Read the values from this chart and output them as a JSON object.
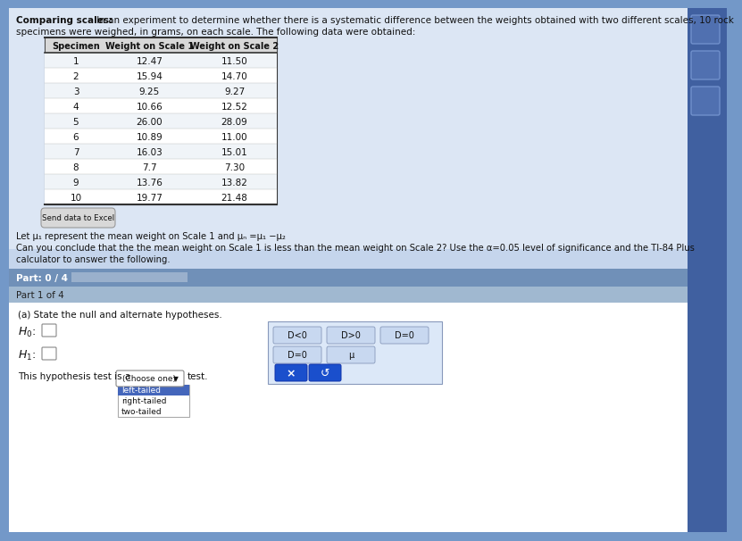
{
  "title_bold": "Comparing scales:",
  "title_rest": " In an experiment to determine whether there is a systematic difference between the weights obtained with two different scales, 10 rock",
  "title_line2": "specimens were weighed, in grams, on each scale. The following data were obtained:",
  "table_headers": [
    "Specimen",
    "Weight on Scale 1",
    "Weight on Scale 2"
  ],
  "table_data": [
    [
      1,
      "12.47",
      "11.50"
    ],
    [
      2,
      "15.94",
      "14.70"
    ],
    [
      3,
      "9.25",
      "9.27"
    ],
    [
      4,
      "10.66",
      "12.52"
    ],
    [
      5,
      "26.00",
      "28.09"
    ],
    [
      6,
      "10.89",
      "11.00"
    ],
    [
      7,
      "16.03",
      "15.01"
    ],
    [
      8,
      "7.7",
      "7.30"
    ],
    [
      9,
      "13.76",
      "13.82"
    ],
    [
      10,
      "19.77",
      "21.48"
    ]
  ],
  "send_data_label": "Send data to Excel",
  "mu_line1": "Let μ₁ represent the mean weight on Scale 1 and μₙ =μ₁ −μ₂",
  "question_line1": "Can you conclude that the the mean weight on Scale 1 is less than the mean weight on Scale 2? Use the α=0.05 level of significance and the TI-84 Plus",
  "question_line2": "calculator to answer the following.",
  "part_label": "Part: 0 / 4",
  "part1_label": "Part 1 of 4",
  "part_a_label": "(a) State the null and alternate hypotheses.",
  "box_options_row1": [
    "D<0",
    "D>0",
    "D=0"
  ],
  "box_options_row2": [
    "D=0",
    "μ"
  ],
  "hypothesis_test_text": "This hypothesis test is a",
  "choose_one_label": "(Choose one)",
  "test_label": "test.",
  "x_button": "×",
  "refresh_button": "↺",
  "dropdown_options": [
    "left-tailed",
    "right-tailed",
    "two-tailed"
  ],
  "dropdown_selected": "left-tailed",
  "bg_main": "#7398c8",
  "bg_light": "#c5d5ec",
  "bg_white": "#ffffff",
  "bg_content": "#dce6f4",
  "part_bar_bg": "#7090b8",
  "part_bar_fill": "#9ab0cc",
  "part1_bar_bg": "#a0b8d0",
  "section_white": "#f0f4f8",
  "btn_gray": "#d8d8d8",
  "btn_blue": "#1a4fcc",
  "dropdown_highlight": "#4466bb",
  "right_strip": "#4060a0",
  "icon_bg": "#5070b0",
  "table_header_line": "#333333",
  "text_dark": "#111111",
  "opt_box_bg": "#c8d8f0",
  "opt_panel_bg": "#dce8f8",
  "opt_panel_border": "#8899bb"
}
